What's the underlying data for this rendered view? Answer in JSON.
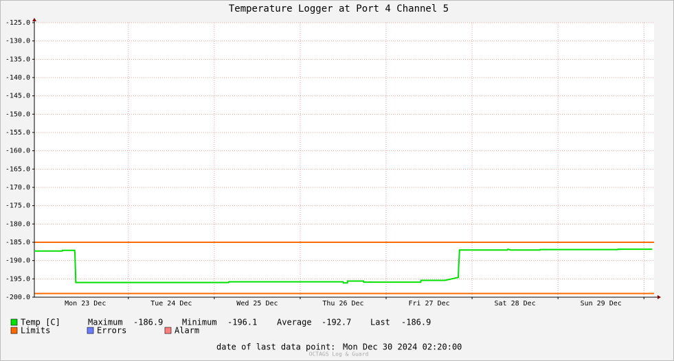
{
  "chart_data": {
    "type": "line",
    "title": "Temperature Logger at Port 4 Channel 5",
    "x": [
      "2024-12-22T21:45",
      "2024-12-23T05:30",
      "2024-12-23T05:35",
      "2024-12-23T09:00",
      "2024-12-23T09:05",
      "2024-12-23T09:20",
      "2024-12-25T04:00",
      "2024-12-25T04:05",
      "2024-12-26T12:00",
      "2024-12-26T12:05",
      "2024-12-26T13:10",
      "2024-12-26T13:15",
      "2024-12-26T17:40",
      "2024-12-26T17:45",
      "2024-12-27T09:40",
      "2024-12-27T09:45",
      "2024-12-27T16:25",
      "2024-12-27T20:10",
      "2024-12-27T20:15",
      "2024-12-27T20:30",
      "2024-12-28T09:50",
      "2024-12-28T10:00",
      "2024-12-28T10:45",
      "2024-12-28T19:00",
      "2024-12-28T19:05",
      "2024-12-29T16:40",
      "2024-12-29T16:45",
      "2024-12-30T02:20"
    ],
    "series": [
      {
        "name": "Temp [C]",
        "color": "#00e000",
        "values": [
          -187.4,
          -187.4,
          -187.2,
          -187.2,
          -188.2,
          -196.0,
          -196.0,
          -195.8,
          -195.8,
          -196.1,
          -196.1,
          -195.6,
          -195.6,
          -195.9,
          -195.9,
          -195.4,
          -195.4,
          -194.6,
          -191.8,
          -187.1,
          -187.1,
          -186.9,
          -187.1,
          -187.1,
          -187.0,
          -187.0,
          -186.9,
          -186.9
        ]
      }
    ],
    "limits": {
      "name": "Limits",
      "color": "#ff6a00",
      "values": [
        -185,
        -199
      ]
    },
    "legend_extra": [
      {
        "name": "Errors",
        "color": "#6a7dff"
      },
      {
        "name": "Alarm",
        "color": "#ff7f7f"
      }
    ],
    "stats": [
      {
        "label": "Maximum",
        "value": -186.9
      },
      {
        "label": "Minimum",
        "value": -196.1
      },
      {
        "label": "Average",
        "value": -192.7
      },
      {
        "label": "Last",
        "value": -186.9
      }
    ],
    "xlim": [
      "2024-12-22T21:45",
      "2024-12-30T02:50"
    ],
    "xticks": [
      {
        "value": "2024-12-23T12:00",
        "label": "Mon 23 Dec"
      },
      {
        "value": "2024-12-24T12:00",
        "label": "Tue 24 Dec"
      },
      {
        "value": "2024-12-25T12:00",
        "label": "Wed 25 Dec"
      },
      {
        "value": "2024-12-26T12:00",
        "label": "Thu 26 Dec"
      },
      {
        "value": "2024-12-27T12:00",
        "label": "Fri 27 Dec"
      },
      {
        "value": "2024-12-28T12:00",
        "label": "Sat 28 Dec"
      },
      {
        "value": "2024-12-29T12:00",
        "label": "Sun 29 Dec"
      }
    ],
    "xgrid": [
      "2024-12-24T00:00",
      "2024-12-25T00:00",
      "2024-12-26T00:00",
      "2024-12-27T00:00",
      "2024-12-28T00:00",
      "2024-12-29T00:00",
      "2024-12-30T00:00"
    ],
    "ylim": [
      -200,
      -125
    ],
    "yticks": [
      {
        "value": -125,
        "label": "-125.0"
      },
      {
        "value": -130,
        "label": "-130.0"
      },
      {
        "value": -135,
        "label": "-135.0"
      },
      {
        "value": -140,
        "label": "-140.0"
      },
      {
        "value": -145,
        "label": "-145.0"
      },
      {
        "value": -150,
        "label": "-150.0"
      },
      {
        "value": -155,
        "label": "-155.0"
      },
      {
        "value": -160,
        "label": "-160.0"
      },
      {
        "value": -165,
        "label": "-165.0"
      },
      {
        "value": -170,
        "label": "-170.0"
      },
      {
        "value": -175,
        "label": "-175.0"
      },
      {
        "value": -180,
        "label": "-180.0"
      },
      {
        "value": -185,
        "label": "-185.0"
      },
      {
        "value": -190,
        "label": "-190.0"
      },
      {
        "value": -195,
        "label": "-195.0"
      },
      {
        "value": -200,
        "label": "-200.0"
      }
    ],
    "grid": true,
    "footer_label": "date of last data point:",
    "footer_value": "Mon Dec 30 2024 02:20:00",
    "watermark": "OCTAGS Log & Guard"
  }
}
